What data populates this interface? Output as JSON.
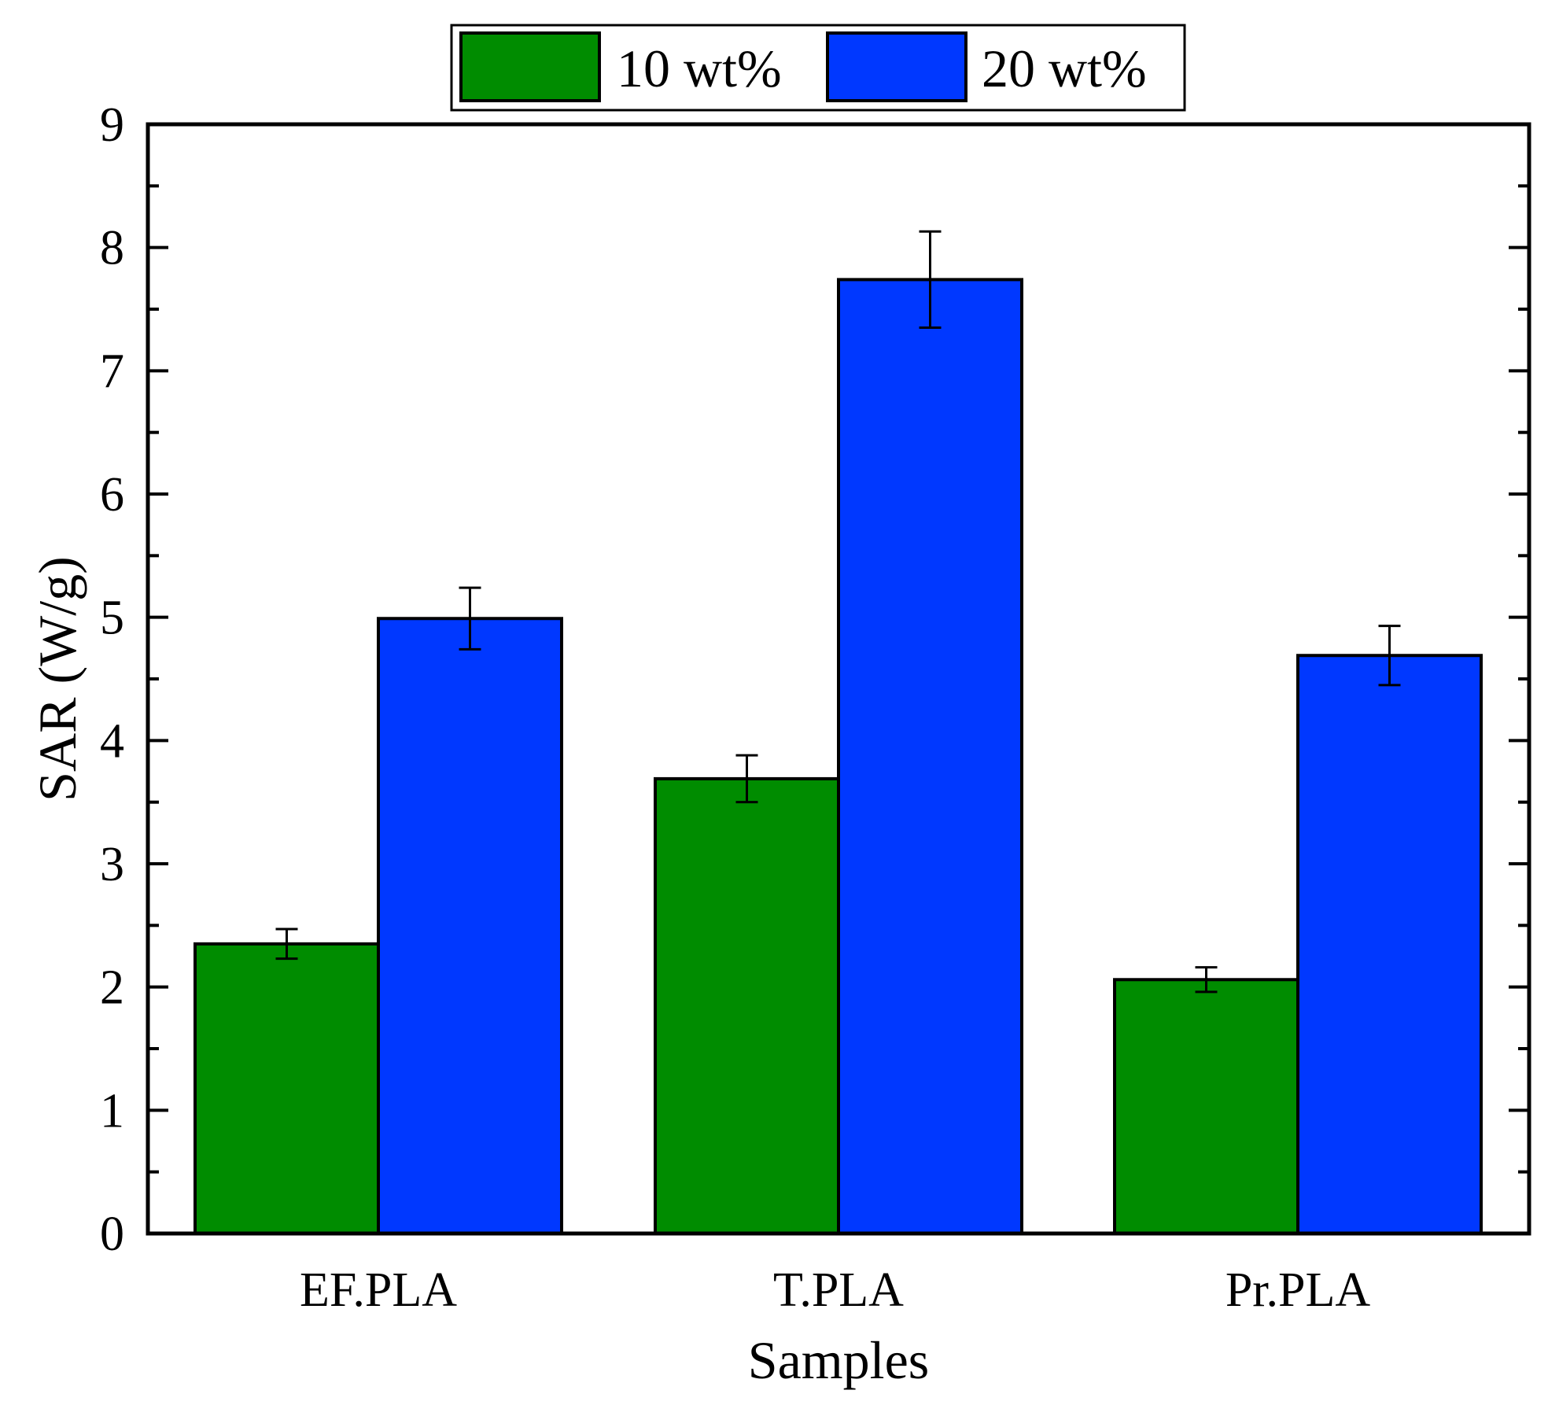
{
  "colors": {
    "series_10": "#008c00",
    "series_20": "#0038ff",
    "axis": "#000000",
    "background": "#ffffff"
  },
  "chart_data": {
    "type": "bar",
    "title": "",
    "xlabel": "Samples",
    "ylabel": "SAR (W/g)",
    "categories": [
      "EF.PLA",
      "T.PLA",
      "Pr.PLA"
    ],
    "ylim": [
      0,
      9
    ],
    "yticks": [
      "0",
      "1",
      "2",
      "3",
      "4",
      "5",
      "6",
      "7",
      "8",
      "9"
    ],
    "legend_position": "top-center, outside plot",
    "series": [
      {
        "name": "10 wt%",
        "values": [
          2.35,
          3.69,
          2.06
        ],
        "errors": [
          0.12,
          0.19,
          0.1
        ]
      },
      {
        "name": "20 wt%",
        "values": [
          4.99,
          7.74,
          4.69
        ],
        "errors": [
          0.25,
          0.39,
          0.24
        ]
      }
    ]
  }
}
